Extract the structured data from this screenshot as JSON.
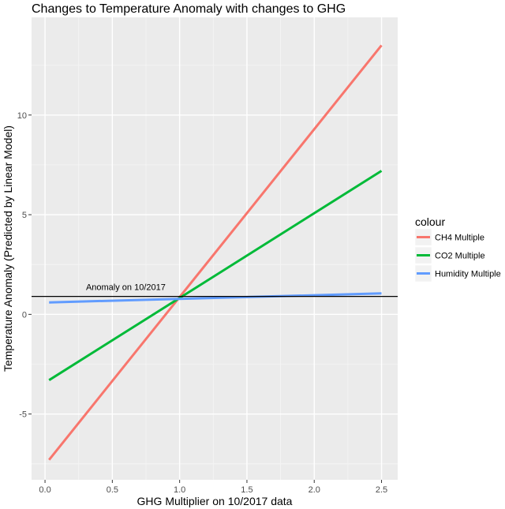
{
  "chart_data": {
    "type": "line",
    "title": "Changes to Temperature Anomaly with changes to GHG",
    "xlabel": "GHG Multiplier on 10/2017 data",
    "ylabel": "Temperature Anomaly (Predicted by Linear Model)",
    "xlim": [
      -0.1,
      2.62
    ],
    "ylim": [
      -8.3,
      14.9
    ],
    "x_ticks": [
      0.0,
      0.5,
      1.0,
      1.5,
      2.0,
      2.5
    ],
    "x_tick_labels": [
      "0.0",
      "0.5",
      "1.0",
      "1.5",
      "2.0",
      "2.5"
    ],
    "y_ticks": [
      -5,
      0,
      5,
      10
    ],
    "y_tick_labels": [
      "-5",
      "0",
      "5",
      "10"
    ],
    "grid": true,
    "legend_title": "colour",
    "legend_position": "right",
    "series": [
      {
        "name": "CH4 Multiple",
        "color": "#F8766D",
        "x": [
          0.03,
          2.5
        ],
        "y": [
          -7.3,
          13.5
        ]
      },
      {
        "name": "CO2 Multiple",
        "color": "#00BA38",
        "x": [
          0.03,
          2.5
        ],
        "y": [
          -3.3,
          7.2
        ]
      },
      {
        "name": "Humidity Multiple",
        "color": "#619CFF",
        "x": [
          0.03,
          2.5
        ],
        "y": [
          0.6,
          1.05
        ]
      }
    ],
    "hline": {
      "y": 0.9,
      "color": "#000000",
      "label": "Anomaly on 10/2017",
      "label_x": 0.6
    }
  }
}
